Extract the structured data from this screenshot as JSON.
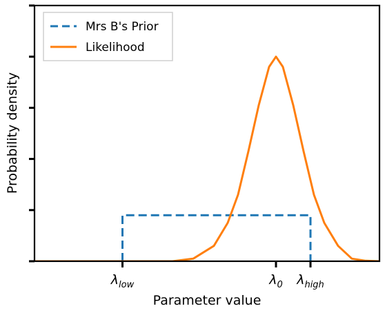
{
  "chart_data": {
    "type": "line",
    "xlabel": "Parameter value",
    "ylabel": "Probability density",
    "xlim": [
      0,
      10
    ],
    "ylim": [
      0,
      5
    ],
    "x_ticks": [
      {
        "value": 2.55,
        "label": "λ",
        "sub": "low"
      },
      {
        "value": 7.0,
        "label": "λ",
        "sub": "0"
      },
      {
        "value": 8.0,
        "label": "λ",
        "sub": "high"
      }
    ],
    "y_ticks": [
      0,
      1,
      2,
      3,
      4,
      5
    ],
    "legend_position": "top-left",
    "series": [
      {
        "name": "Mrs B's Prior",
        "style": "dashed",
        "color": "#1f77b4",
        "x": [
          2.55,
          2.55,
          8.0,
          8.0
        ],
        "y": [
          0,
          0.9,
          0.9,
          0
        ]
      },
      {
        "name": "Likelihood",
        "style": "solid",
        "color": "#ff7f0e",
        "x": [
          0.0,
          4.0,
          4.6,
          5.2,
          5.6,
          5.9,
          6.2,
          6.5,
          6.8,
          7.0,
          7.2,
          7.5,
          7.8,
          8.1,
          8.4,
          8.8,
          9.2,
          9.6,
          10.0
        ],
        "y": [
          0.0,
          0.0,
          0.05,
          0.3,
          0.75,
          1.3,
          2.15,
          3.05,
          3.8,
          4.0,
          3.8,
          3.05,
          2.15,
          1.3,
          0.75,
          0.3,
          0.05,
          0.01,
          0.0
        ]
      }
    ]
  }
}
